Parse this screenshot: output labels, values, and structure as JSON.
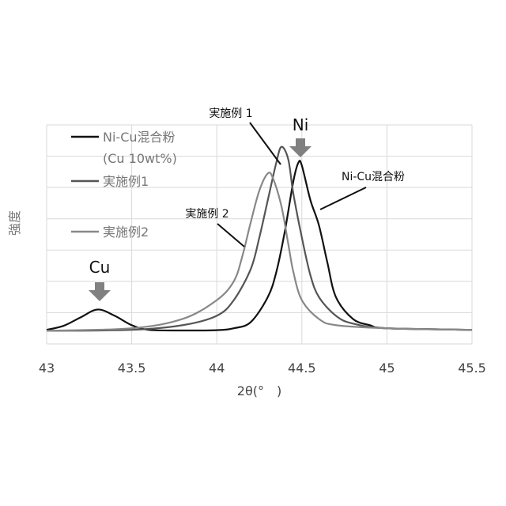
{
  "chart_data": {
    "type": "line",
    "title": "",
    "xlabel": "2θ(°　)",
    "ylabel": "強度",
    "xlim": [
      43,
      45.5
    ],
    "ylim": [
      0,
      7
    ],
    "xticks": [
      "43",
      "43.5",
      "44",
      "44.5",
      "45",
      "45.5"
    ],
    "grid": true,
    "legend": {
      "placement": "top-left",
      "entries": [
        "Ni-Cu混合粉",
        "(Cu 10wt%)",
        "実施例1",
        "実施例2"
      ]
    },
    "annotations": {
      "cu_peak": "Cu",
      "ni_peak": "Ni",
      "ex1_label": "実施例 1",
      "ex2_label": "実施例 2",
      "mix_label": "Ni-Cu混合粉"
    },
    "series": [
      {
        "name": "Ni-Cu混合粉 (Cu 10wt%)",
        "color": "#111111",
        "x": [
          43,
          43.1,
          43.2,
          43.3,
          43.4,
          43.5,
          43.6,
          43.8,
          44.0,
          44.1,
          44.2,
          44.3,
          44.35,
          44.4,
          44.45,
          44.48,
          44.5,
          44.55,
          44.6,
          44.65,
          44.7,
          44.8,
          44.9,
          45.0,
          45.5
        ],
        "y": [
          0.45,
          0.58,
          0.85,
          1.1,
          0.9,
          0.6,
          0.45,
          0.43,
          0.44,
          0.5,
          0.7,
          1.5,
          2.3,
          3.6,
          5.2,
          5.8,
          5.7,
          4.6,
          3.8,
          2.6,
          1.5,
          0.8,
          0.6,
          0.5,
          0.45
        ]
      },
      {
        "name": "実施例1",
        "color": "#555555",
        "x": [
          43,
          43.5,
          43.8,
          44.0,
          44.1,
          44.2,
          44.25,
          44.3,
          44.35,
          44.38,
          44.42,
          44.45,
          44.5,
          44.55,
          44.6,
          44.7,
          44.8,
          45.0,
          45.5
        ],
        "y": [
          0.42,
          0.45,
          0.6,
          0.9,
          1.4,
          2.4,
          3.4,
          4.6,
          5.8,
          6.3,
          5.9,
          4.8,
          3.4,
          2.2,
          1.5,
          0.9,
          0.65,
          0.5,
          0.45
        ]
      },
      {
        "name": "実施例2",
        "color": "#888888",
        "x": [
          43,
          43.5,
          43.8,
          44.0,
          44.1,
          44.15,
          44.2,
          44.25,
          44.3,
          44.33,
          44.38,
          44.42,
          44.45,
          44.5,
          44.6,
          44.7,
          45.0,
          45.5
        ],
        "y": [
          0.42,
          0.5,
          0.8,
          1.4,
          2.0,
          2.8,
          3.9,
          4.9,
          5.45,
          5.3,
          4.4,
          3.2,
          2.3,
          1.4,
          0.8,
          0.6,
          0.5,
          0.45
        ]
      }
    ]
  }
}
